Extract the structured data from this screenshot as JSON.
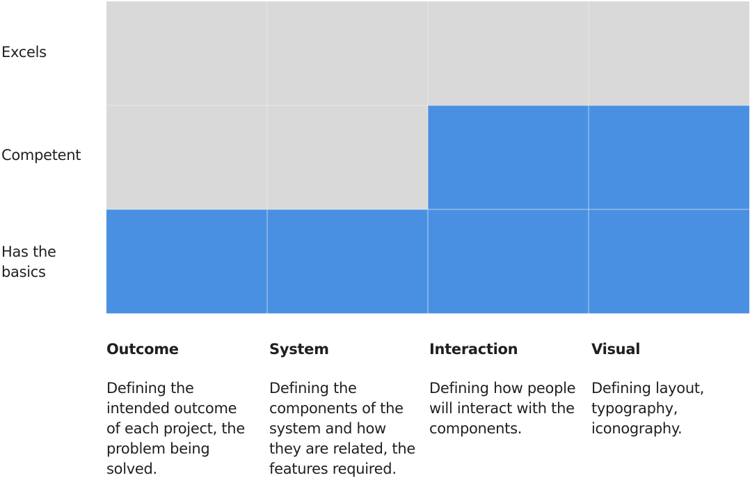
{
  "chart_data": {
    "type": "heatmap",
    "title": "",
    "xlabel": "",
    "ylabel": "",
    "rows": [
      "Excels",
      "Competent",
      "Has the\nbasics"
    ],
    "columns": [
      {
        "title": "Outcome",
        "description": "Defining the intended outcome of each project, the problem being solved.",
        "level": 1
      },
      {
        "title": "System",
        "description": "Defining the components of the system and how they are related, the features required.",
        "level": 1
      },
      {
        "title": "Interaction",
        "description": "Defining how people will interact with the components.",
        "level": 2
      },
      {
        "title": "Visual",
        "description": "Defining layout, typography, iconography.",
        "level": 2
      }
    ],
    "level_scale": "1 = Has the basics, 2 = Competent, 3 = Excels",
    "legend": "none",
    "grid": true
  },
  "colors": {
    "filled": "#4a90e2",
    "empty": "#d9d9d9",
    "grid_line": "#efefef"
  }
}
